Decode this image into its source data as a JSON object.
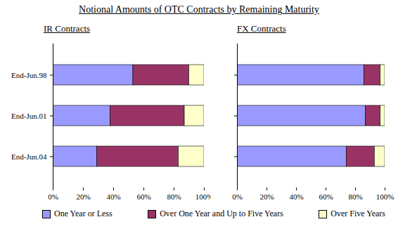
{
  "title": "Notional Amounts of OTC Contracts by Remaining Maturity",
  "chart_data": [
    {
      "type": "bar",
      "title": "IR Contracts",
      "orientation": "horizontal",
      "stacked": true,
      "legend": "bottom",
      "categories": [
        "End-Jun.98",
        "End-Jun.01",
        "End-Jun.04"
      ],
      "series": [
        {
          "name": "One Year or Less",
          "color": "#9999ff",
          "values": [
            53,
            38,
            29
          ]
        },
        {
          "name": "Over One Year and Up to Five Years",
          "color": "#993366",
          "values": [
            37,
            49,
            54
          ]
        },
        {
          "name": "Over Five Years",
          "color": "#ffffcc",
          "values": [
            10,
            13,
            17
          ]
        }
      ],
      "xlim": [
        0,
        100
      ],
      "xticks": [
        {
          "value": 0,
          "label": "0%"
        },
        {
          "value": 20,
          "label": "20%"
        },
        {
          "value": 40,
          "label": "40%"
        },
        {
          "value": 60,
          "label": "60%"
        },
        {
          "value": 80,
          "label": "80%"
        },
        {
          "value": 100,
          "label": "100%"
        }
      ]
    },
    {
      "type": "bar",
      "title": "FX Contracts",
      "orientation": "horizontal",
      "stacked": true,
      "tick_labels": "x",
      "categories": [
        "End-Jun.98",
        "End-Jun.01",
        "End-Jun.04"
      ],
      "series": [
        {
          "name": "One Year or Less",
          "color": "#9999ff",
          "values": [
            86,
            87,
            74
          ]
        },
        {
          "name": "Over One Year and Up to Five Years",
          "color": "#993366",
          "values": [
            11,
            10,
            19
          ]
        },
        {
          "name": "Over Five Years",
          "color": "#ffffcc",
          "values": [
            3,
            3,
            7
          ]
        }
      ],
      "xlim": [
        0,
        100
      ],
      "xticks": [
        {
          "value": 0,
          "label": "0%"
        },
        {
          "value": 20,
          "label": "20%"
        },
        {
          "value": 40,
          "label": "40%"
        },
        {
          "value": 60,
          "label": "60%"
        },
        {
          "value": 80,
          "label": "80%"
        },
        {
          "value": 100,
          "label": "100%"
        }
      ]
    }
  ]
}
